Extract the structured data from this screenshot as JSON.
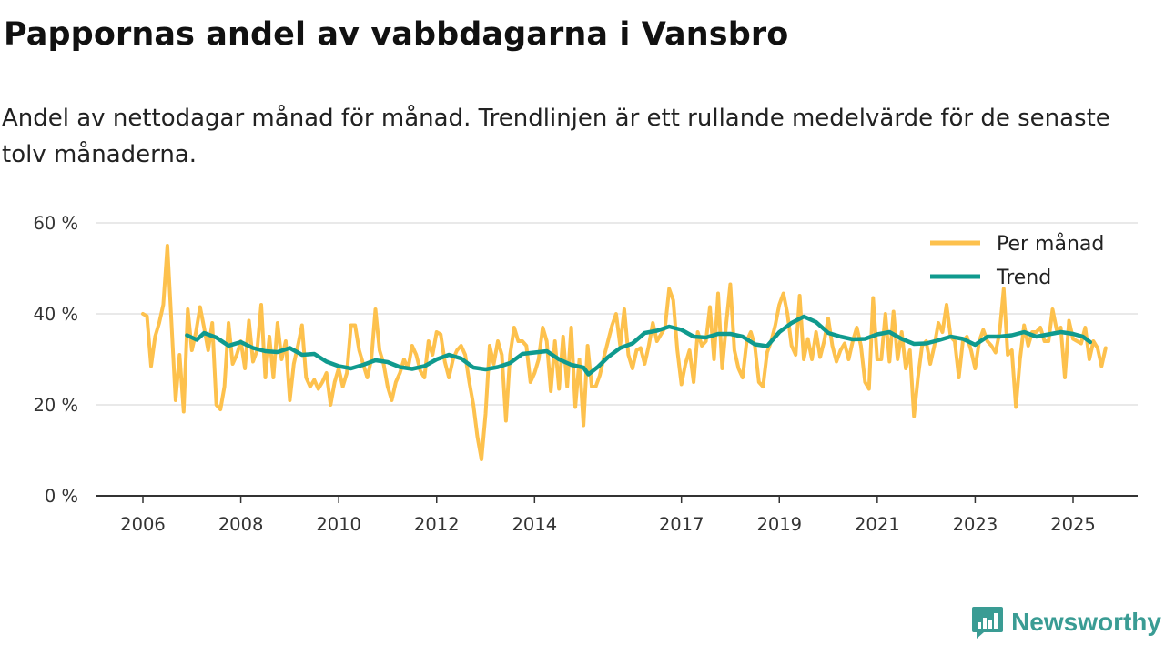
{
  "title": "Pappornas andel av vabbdagarna i Vansbro",
  "subtitle": "Andel av nettodagar månad för månad. Trendlinjen är ett rullande medelvärde för de senaste tolv månaderna.",
  "brand": {
    "name": "Newsworthy",
    "icon": "newsworthy-logo-icon",
    "color": "#3a9c94"
  },
  "chart_data": {
    "type": "line",
    "title": "Pappornas andel av vabbdagarna i Vansbro",
    "xlabel": "",
    "ylabel": "",
    "xlim": [
      2005.9,
      2025.4
    ],
    "ylim": [
      0,
      60
    ],
    "y_ticks": [
      0,
      20,
      40,
      60
    ],
    "y_tick_labels": [
      "0 %",
      "20 %",
      "40 %",
      "60 %"
    ],
    "x_ticks": [
      2006,
      2008,
      2010,
      2012,
      2014,
      2017,
      2019,
      2021,
      2023,
      2025
    ],
    "x_tick_labels": [
      "2006",
      "2008",
      "2010",
      "2012",
      "2014",
      "2017",
      "2019",
      "2021",
      "2023",
      "2025"
    ],
    "grid": true,
    "legend_position": "top-right",
    "series": [
      {
        "name": "Per månad",
        "color": "#fdc14d",
        "x_start": 2006.0,
        "x_step": 0.08333,
        "values": [
          40,
          39.5,
          28.5,
          35,
          38,
          42,
          55,
          38,
          21,
          31,
          18.5,
          41,
          32,
          36,
          41.5,
          37,
          32,
          38,
          20,
          19,
          24,
          38,
          29,
          31,
          34,
          28,
          38.5,
          29.5,
          32,
          42,
          26,
          35,
          26,
          38,
          30,
          34,
          21,
          29,
          33,
          37.5,
          26,
          24,
          25.5,
          23.5,
          25,
          27,
          20,
          25,
          28,
          24,
          27,
          37.5,
          37.5,
          32,
          29,
          26,
          30,
          41,
          32,
          29,
          24,
          21,
          25,
          27,
          30,
          28,
          33,
          31,
          27.5,
          26,
          34,
          31,
          36,
          35.5,
          29.5,
          26,
          30,
          32,
          33,
          31,
          25,
          20,
          13,
          8,
          18,
          33,
          29,
          34,
          31,
          16.5,
          31,
          37,
          34,
          34,
          33,
          25,
          27,
          30,
          37,
          34,
          23,
          34,
          23.5,
          35,
          24,
          37,
          19.5,
          30,
          15.5,
          33,
          24,
          24,
          26.5,
          30.5,
          34,
          37.5,
          40,
          33,
          41,
          31,
          28,
          32,
          32.5,
          29,
          33,
          38,
          34,
          35.5,
          37,
          45.5,
          43,
          32,
          24.5,
          29,
          32,
          25,
          36,
          33,
          34,
          41.5,
          30,
          44.5,
          28,
          38,
          46.5,
          32,
          28,
          26,
          34,
          36,
          33,
          25,
          24,
          31.5,
          34,
          37.5,
          42,
          44.5,
          40,
          33,
          31,
          44,
          30,
          34.5,
          30,
          36,
          30.5,
          34,
          39,
          33,
          29.5,
          32,
          33.5,
          30,
          34,
          37,
          33,
          25,
          23.5,
          43.5,
          30,
          30,
          40,
          29.5,
          40.5,
          30,
          36,
          28,
          32,
          17.5,
          26,
          33,
          34,
          29,
          33,
          38,
          36,
          42,
          35,
          34,
          26,
          34,
          35,
          32,
          28,
          34,
          36.5,
          34,
          33,
          31.5,
          36,
          45.5,
          31,
          32,
          19.5,
          30,
          37.5,
          33,
          36,
          36,
          37,
          34,
          34,
          41,
          36.5,
          37,
          26,
          38.5,
          34.5,
          34,
          33.5,
          37,
          30,
          34,
          32.5,
          28.5,
          32.5
        ]
      },
      {
        "name": "Trend",
        "color": "#0f9a8e",
        "points": [
          [
            2006.9,
            35.3
          ],
          [
            2007.1,
            34.3
          ],
          [
            2007.25,
            35.8
          ],
          [
            2007.5,
            34.8
          ],
          [
            2007.75,
            33.0
          ],
          [
            2008.0,
            33.8
          ],
          [
            2008.25,
            32.5
          ],
          [
            2008.5,
            31.8
          ],
          [
            2008.75,
            31.6
          ],
          [
            2009.0,
            32.5
          ],
          [
            2009.25,
            31.0
          ],
          [
            2009.5,
            31.2
          ],
          [
            2009.75,
            29.5
          ],
          [
            2010.0,
            28.5
          ],
          [
            2010.25,
            28.0
          ],
          [
            2010.5,
            28.8
          ],
          [
            2010.75,
            29.8
          ],
          [
            2011.0,
            29.4
          ],
          [
            2011.25,
            28.3
          ],
          [
            2011.5,
            27.9
          ],
          [
            2011.75,
            28.5
          ],
          [
            2012.0,
            30.0
          ],
          [
            2012.25,
            31.0
          ],
          [
            2012.5,
            30.2
          ],
          [
            2012.75,
            28.2
          ],
          [
            2013.0,
            27.8
          ],
          [
            2013.25,
            28.3
          ],
          [
            2013.5,
            29.2
          ],
          [
            2013.75,
            31.2
          ],
          [
            2014.0,
            31.5
          ],
          [
            2014.25,
            31.8
          ],
          [
            2014.5,
            30.0
          ],
          [
            2014.75,
            28.8
          ],
          [
            2015.0,
            28.2
          ],
          [
            2015.1,
            26.7
          ],
          [
            2015.3,
            28.4
          ],
          [
            2015.5,
            30.5
          ],
          [
            2015.75,
            32.5
          ],
          [
            2016.0,
            33.5
          ],
          [
            2016.25,
            35.8
          ],
          [
            2016.5,
            36.3
          ],
          [
            2016.75,
            37.2
          ],
          [
            2017.0,
            36.5
          ],
          [
            2017.25,
            35.0
          ],
          [
            2017.5,
            34.8
          ],
          [
            2017.75,
            35.6
          ],
          [
            2018.0,
            35.6
          ],
          [
            2018.25,
            35.0
          ],
          [
            2018.5,
            33.3
          ],
          [
            2018.75,
            32.9
          ],
          [
            2019.0,
            36.0
          ],
          [
            2019.25,
            38.0
          ],
          [
            2019.5,
            39.4
          ],
          [
            2019.75,
            38.2
          ],
          [
            2020.0,
            35.8
          ],
          [
            2020.25,
            35.0
          ],
          [
            2020.5,
            34.4
          ],
          [
            2020.75,
            34.5
          ],
          [
            2021.0,
            35.5
          ],
          [
            2021.25,
            36.0
          ],
          [
            2021.5,
            34.5
          ],
          [
            2021.75,
            33.4
          ],
          [
            2022.0,
            33.5
          ],
          [
            2022.25,
            34.2
          ],
          [
            2022.5,
            35.0
          ],
          [
            2022.75,
            34.5
          ],
          [
            2023.0,
            33.2
          ],
          [
            2023.25,
            35.0
          ],
          [
            2023.5,
            35.0
          ],
          [
            2023.75,
            35.3
          ],
          [
            2024.0,
            36.0
          ],
          [
            2024.25,
            35.0
          ],
          [
            2024.5,
            35.5
          ],
          [
            2024.75,
            36.0
          ],
          [
            2025.0,
            35.6
          ],
          [
            2025.2,
            35.0
          ],
          [
            2025.35,
            33.8
          ]
        ]
      }
    ]
  }
}
